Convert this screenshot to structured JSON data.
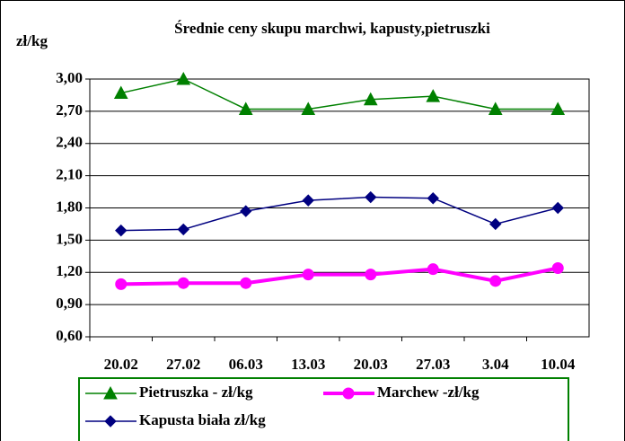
{
  "chart_data": {
    "type": "line",
    "title": "Średnie ceny skupu marchwi, kapusty,pietruszki",
    "y_label": "zł/kg",
    "categories": [
      "20.02",
      "27.02",
      "06.03",
      "13.03",
      "20.03",
      "27.03",
      "3.04",
      "10.04"
    ],
    "series": [
      {
        "name": "Pietruszka - zł/kg",
        "color": "#008000",
        "marker": "triangle",
        "values": [
          2.87,
          3.0,
          2.72,
          2.72,
          2.81,
          2.84,
          2.72,
          2.72
        ]
      },
      {
        "name": "Marchew -zł/kg",
        "color": "#ff00ff",
        "marker": "circle",
        "values": [
          1.09,
          1.1,
          1.1,
          1.18,
          1.18,
          1.23,
          1.12,
          1.24
        ]
      },
      {
        "name": "Kapusta biała zł/kg",
        "color": "#000080",
        "marker": "diamond",
        "values": [
          1.59,
          1.6,
          1.77,
          1.87,
          1.9,
          1.89,
          1.65,
          1.8
        ]
      }
    ],
    "ylim": [
      0.6,
      3.0
    ],
    "yticks": [
      {
        "value": 0.6,
        "label": "0,60"
      },
      {
        "value": 0.9,
        "label": "0,90"
      },
      {
        "value": 1.2,
        "label": "1,20"
      },
      {
        "value": 1.5,
        "label": "1,50"
      },
      {
        "value": 1.8,
        "label": "1,80"
      },
      {
        "value": 2.1,
        "label": "2,10"
      },
      {
        "value": 2.4,
        "label": "2,40"
      },
      {
        "value": 2.7,
        "label": "2,70"
      },
      {
        "value": 3.0,
        "label": "3,00"
      }
    ],
    "grid": true,
    "legend": "bottom"
  }
}
